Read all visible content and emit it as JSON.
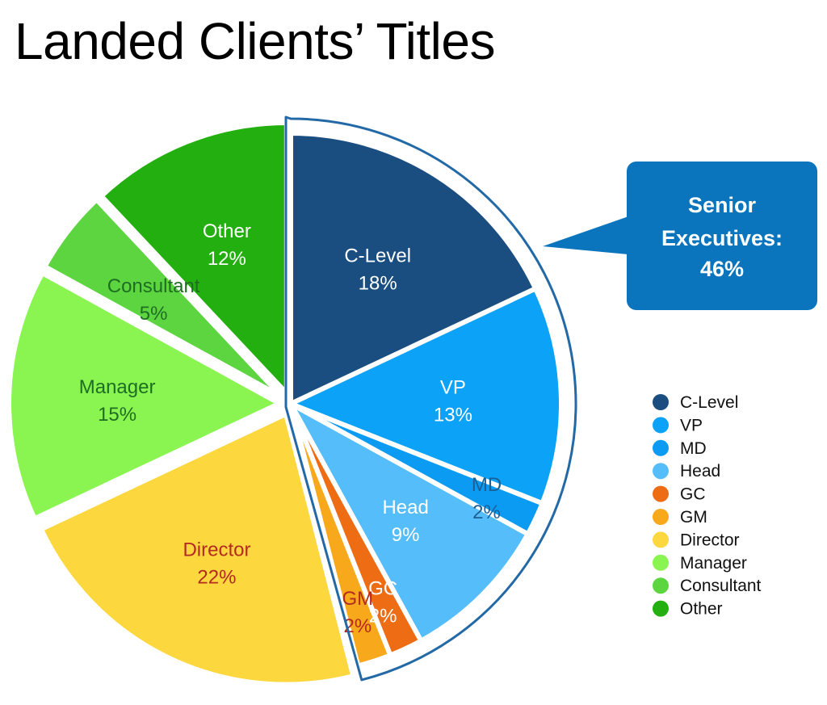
{
  "chart_data": {
    "type": "pie",
    "title": "Landed Clients’ Titles",
    "series": [
      {
        "slices": [
          {
            "label": "C-Level",
            "value": 18,
            "display": "18%",
            "color": "#1A4D80",
            "label_color": "#ffffff",
            "exploded": false
          },
          {
            "label": "VP",
            "value": 13,
            "display": "13%",
            "color": "#0BA2F7",
            "label_color": "#ffffff",
            "exploded": false
          },
          {
            "label": "MD",
            "value": 2,
            "display": "2%",
            "color": "#0B9BF2",
            "label_color": "#1C5E96",
            "exploded": false
          },
          {
            "label": "Head",
            "value": 9,
            "display": "9%",
            "color": "#55BEFA",
            "label_color": "#ffffff",
            "exploded": false
          },
          {
            "label": "GC",
            "value": 2,
            "display": "2%",
            "color": "#EE6D14",
            "label_color": "#ffffff",
            "exploded": false
          },
          {
            "label": "GM",
            "value": 2,
            "display": "2%",
            "color": "#F7A81B",
            "label_color": "#B32B20",
            "exploded": false
          },
          {
            "label": "Director",
            "value": 22,
            "display": "22%",
            "color": "#FDD73E",
            "label_color": "#B32B20",
            "exploded": true
          },
          {
            "label": "Manager",
            "value": 15,
            "display": "15%",
            "color": "#8AF550",
            "label_color": "#1E6E22",
            "exploded": true
          },
          {
            "label": "Consultant",
            "value": 5,
            "display": "5%",
            "color": "#5CD541",
            "label_color": "#1E6E22",
            "exploded": true
          },
          {
            "label": "Other",
            "value": 12,
            "display": "12%",
            "color": "#23AF0F",
            "label_color": "#ffffff",
            "exploded": true
          }
        ]
      }
    ],
    "legend": {
      "position": "right",
      "entries": [
        "C-Level",
        "VP",
        "MD",
        "Head",
        "GC",
        "GM",
        "Director",
        "Manager",
        "Consultant",
        "Other"
      ]
    },
    "callout": {
      "lines": [
        "Senior",
        "Executives:",
        "46%"
      ],
      "fill": "#0A74BD",
      "group": [
        "C-Level",
        "VP",
        "MD",
        "Head",
        "GC",
        "GM"
      ],
      "outline_color": "#2369A6"
    }
  }
}
